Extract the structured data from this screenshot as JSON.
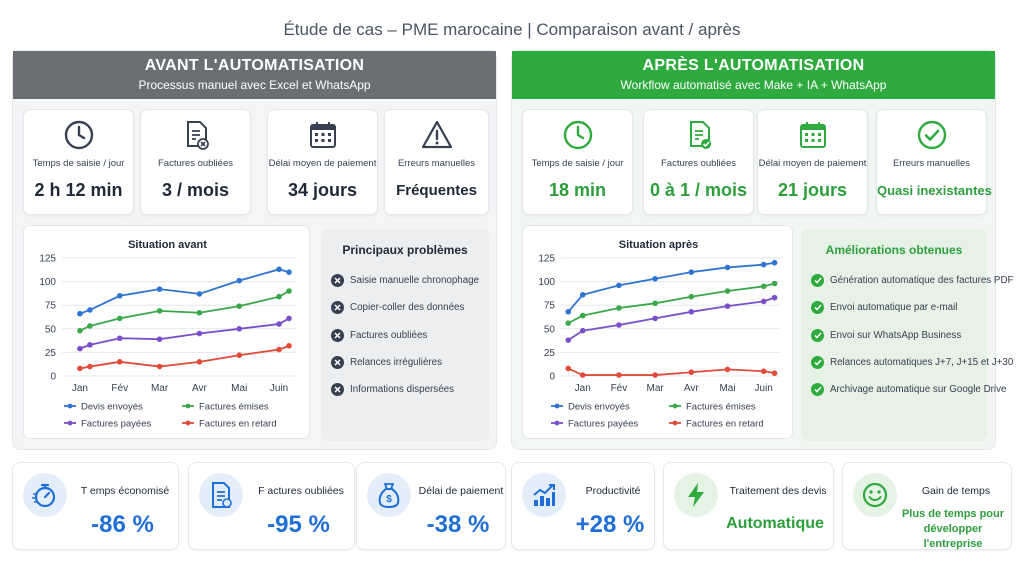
{
  "page_title": "Étude de cas – PME marocaine  |  Comparaison avant / après",
  "colors": {
    "before_header": "#6b6f73",
    "after_header": "#2eaa3e",
    "accent_blue": "#1f6fd6",
    "accent_green": "#2e9e3d"
  },
  "before": {
    "title": "AVANT L'AUTOMATISATION",
    "subtitle": "Processus manuel avec Excel et WhatsApp",
    "kpis": [
      {
        "icon": "clock-icon",
        "label": "Temps de saisie / jour",
        "value": "2 h 12 min"
      },
      {
        "icon": "invoice-error-icon",
        "label": "Factures oubliées",
        "value": "3 / mois"
      },
      {
        "icon": "calendar-icon",
        "label": "Délai moyen de paiement",
        "value": "34 jours"
      },
      {
        "icon": "warning-icon",
        "label": "Erreurs manuelles",
        "value": "Fréquentes"
      }
    ],
    "problems_title": "Principaux problèmes",
    "problems": [
      "Saisie manuelle chronophage",
      "Copier-coller des données",
      "Factures oubliées",
      "Relances irrégulières",
      "Informations dispersées"
    ]
  },
  "after": {
    "title": "APRÈS L'AUTOMATISATION",
    "subtitle": "Workflow automatisé avec Make + IA + WhatsApp",
    "kpis": [
      {
        "icon": "clock-icon",
        "label": "Temps de saisie / jour",
        "value": "18 min"
      },
      {
        "icon": "invoice-check-icon",
        "label": "Factures oubliées",
        "value": "0 à 1 / mois"
      },
      {
        "icon": "calendar-icon",
        "label": "Délai moyen de paiement",
        "value": "21 jours"
      },
      {
        "icon": "check-circle-icon",
        "label": "Erreurs manuelles",
        "value": "Quasi inexistantes"
      }
    ],
    "improvements_title": "Améliorations obtenues",
    "improvements": [
      "Génération automatique des factures PDF",
      "Envoi automatique par e-mail",
      "Envoi sur WhatsApp Business",
      "Relances automatiques J+7, J+15 et J+30",
      "Archivage automatique sur Google Drive"
    ]
  },
  "bottom_metrics": [
    {
      "icon": "stopwatch-icon",
      "label": "T emps économisé",
      "value": "-86 %"
    },
    {
      "icon": "invoice-icon",
      "label": "F actures oubliées",
      "value": "-95 %"
    },
    {
      "icon": "money-bag-icon",
      "label": "Délai de paiement",
      "value": "-38 %"
    },
    {
      "icon": "growth-chart-icon",
      "label": "Productivité",
      "value": "+28 %"
    },
    {
      "icon": "lightning-icon",
      "label": "Traitement des devis",
      "value": "Automatique"
    },
    {
      "icon": "smiley-icon",
      "label": "Gain de temps",
      "value": "Plus de temps pour développer l'entreprise"
    }
  ],
  "chart_data": [
    {
      "type": "line",
      "title": "Situation avant",
      "categories": [
        "Jan",
        "Fév",
        "Mar",
        "Avr",
        "Mai",
        "Juin"
      ],
      "x": [
        0,
        0.25,
        1,
        2,
        3,
        4,
        5,
        5.25
      ],
      "yticks": [
        0,
        25,
        50,
        75,
        100,
        125
      ],
      "ylim": [
        0,
        125
      ],
      "xlim": [
        -0.45,
        5.45
      ],
      "legend_position": "bottom",
      "series": [
        {
          "name": "Devis envoyés",
          "color": "#2f74d0",
          "values": [
            66,
            70,
            85,
            92,
            87,
            101,
            113,
            110
          ]
        },
        {
          "name": "Factures émises",
          "color": "#3aa84a",
          "values": [
            48,
            53,
            61,
            69,
            67,
            74,
            84,
            90
          ]
        },
        {
          "name": "Factures payées",
          "color": "#7b4fc9",
          "values": [
            29,
            33,
            40,
            39,
            45,
            50,
            55,
            61
          ]
        },
        {
          "name": "Factures en retard",
          "color": "#e04b3a",
          "values": [
            8,
            10,
            15,
            10,
            15,
            22,
            28,
            32
          ]
        }
      ]
    },
    {
      "type": "line",
      "title": "Situation après",
      "categories": [
        "Jan",
        "Fév",
        "Mar",
        "Avr",
        "Mai",
        "Juin"
      ],
      "x": [
        -0.4,
        0,
        1,
        2,
        3,
        4,
        5,
        5.3
      ],
      "yticks": [
        0,
        25,
        50,
        75,
        100,
        125
      ],
      "ylim": [
        0,
        125
      ],
      "xlim": [
        -0.6,
        5.45
      ],
      "legend_position": "bottom",
      "series": [
        {
          "name": "Devis envoyés",
          "color": "#2f74d0",
          "values": [
            68,
            86,
            96,
            103,
            110,
            115,
            118,
            120
          ]
        },
        {
          "name": "Factures émises",
          "color": "#3aa84a",
          "values": [
            56,
            64,
            72,
            77,
            84,
            90,
            95,
            98
          ]
        },
        {
          "name": "Factures payées",
          "color": "#7b4fc9",
          "values": [
            38,
            48,
            54,
            61,
            68,
            74,
            79,
            83
          ]
        },
        {
          "name": "Factures en retard",
          "color": "#e04b3a",
          "values": [
            8,
            1,
            1,
            1,
            4,
            7,
            5,
            3
          ]
        }
      ]
    }
  ]
}
